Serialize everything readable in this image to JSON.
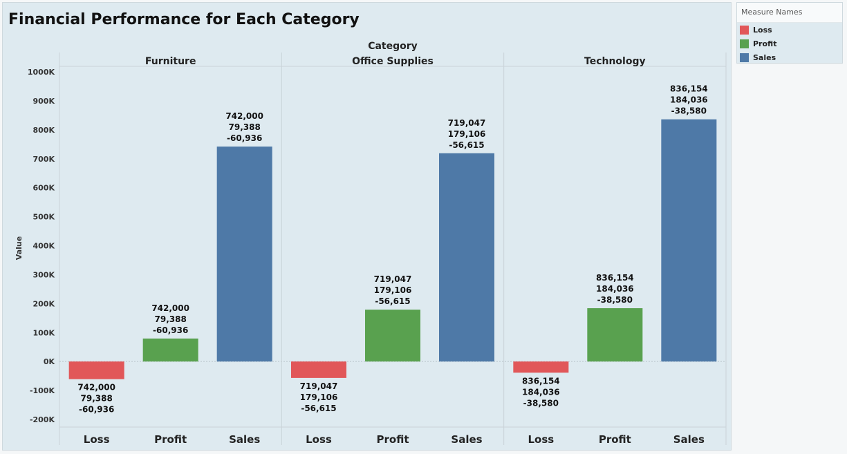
{
  "chart_data": {
    "type": "bar",
    "title": "Financial Performance for Each Category",
    "column_header": "Category",
    "ylabel": "Value",
    "ylim": [
      -200000,
      1000000
    ],
    "yticks": [
      1000000,
      900000,
      800000,
      700000,
      600000,
      500000,
      400000,
      300000,
      200000,
      100000,
      0,
      -100000,
      -200000
    ],
    "ytick_labels": [
      "1000K",
      "900K",
      "800K",
      "700K",
      "600K",
      "500K",
      "400K",
      "300K",
      "200K",
      "100K",
      "0K",
      "-100K",
      "-200K"
    ],
    "grid": false,
    "legend_position": "right",
    "measures": [
      "Loss",
      "Profit",
      "Sales"
    ],
    "colors": {
      "Loss": "#e15759",
      "Profit": "#59a14f",
      "Sales": "#4e79a7"
    },
    "panels": [
      {
        "category": "Furniture",
        "bars": [
          {
            "measure": "Loss",
            "value": -60936,
            "labels": [
              "742,000",
              "79,388",
              "-60,936"
            ]
          },
          {
            "measure": "Profit",
            "value": 79388,
            "labels": [
              "742,000",
              "79,388",
              "-60,936"
            ]
          },
          {
            "measure": "Sales",
            "value": 742000,
            "labels": [
              "742,000",
              "79,388",
              "-60,936"
            ]
          }
        ]
      },
      {
        "category": "Office Supplies",
        "bars": [
          {
            "measure": "Loss",
            "value": -56615,
            "labels": [
              "719,047",
              "179,106",
              "-56,615"
            ]
          },
          {
            "measure": "Profit",
            "value": 179106,
            "labels": [
              "719,047",
              "179,106",
              "-56,615"
            ]
          },
          {
            "measure": "Sales",
            "value": 719047,
            "labels": [
              "719,047",
              "179,106",
              "-56,615"
            ]
          }
        ]
      },
      {
        "category": "Technology",
        "bars": [
          {
            "measure": "Loss",
            "value": -38580,
            "labels": [
              "836,154",
              "184,036",
              "-38,580"
            ]
          },
          {
            "measure": "Profit",
            "value": 184036,
            "labels": [
              "836,154",
              "184,036",
              "-38,580"
            ]
          },
          {
            "measure": "Sales",
            "value": 836154,
            "labels": [
              "836,154",
              "184,036",
              "-38,580"
            ]
          }
        ]
      }
    ]
  },
  "legend": {
    "title": "Measure Names",
    "items": [
      {
        "label": "Loss",
        "color": "#e15759"
      },
      {
        "label": "Profit",
        "color": "#59a14f"
      },
      {
        "label": "Sales",
        "color": "#4e79a7"
      }
    ]
  }
}
